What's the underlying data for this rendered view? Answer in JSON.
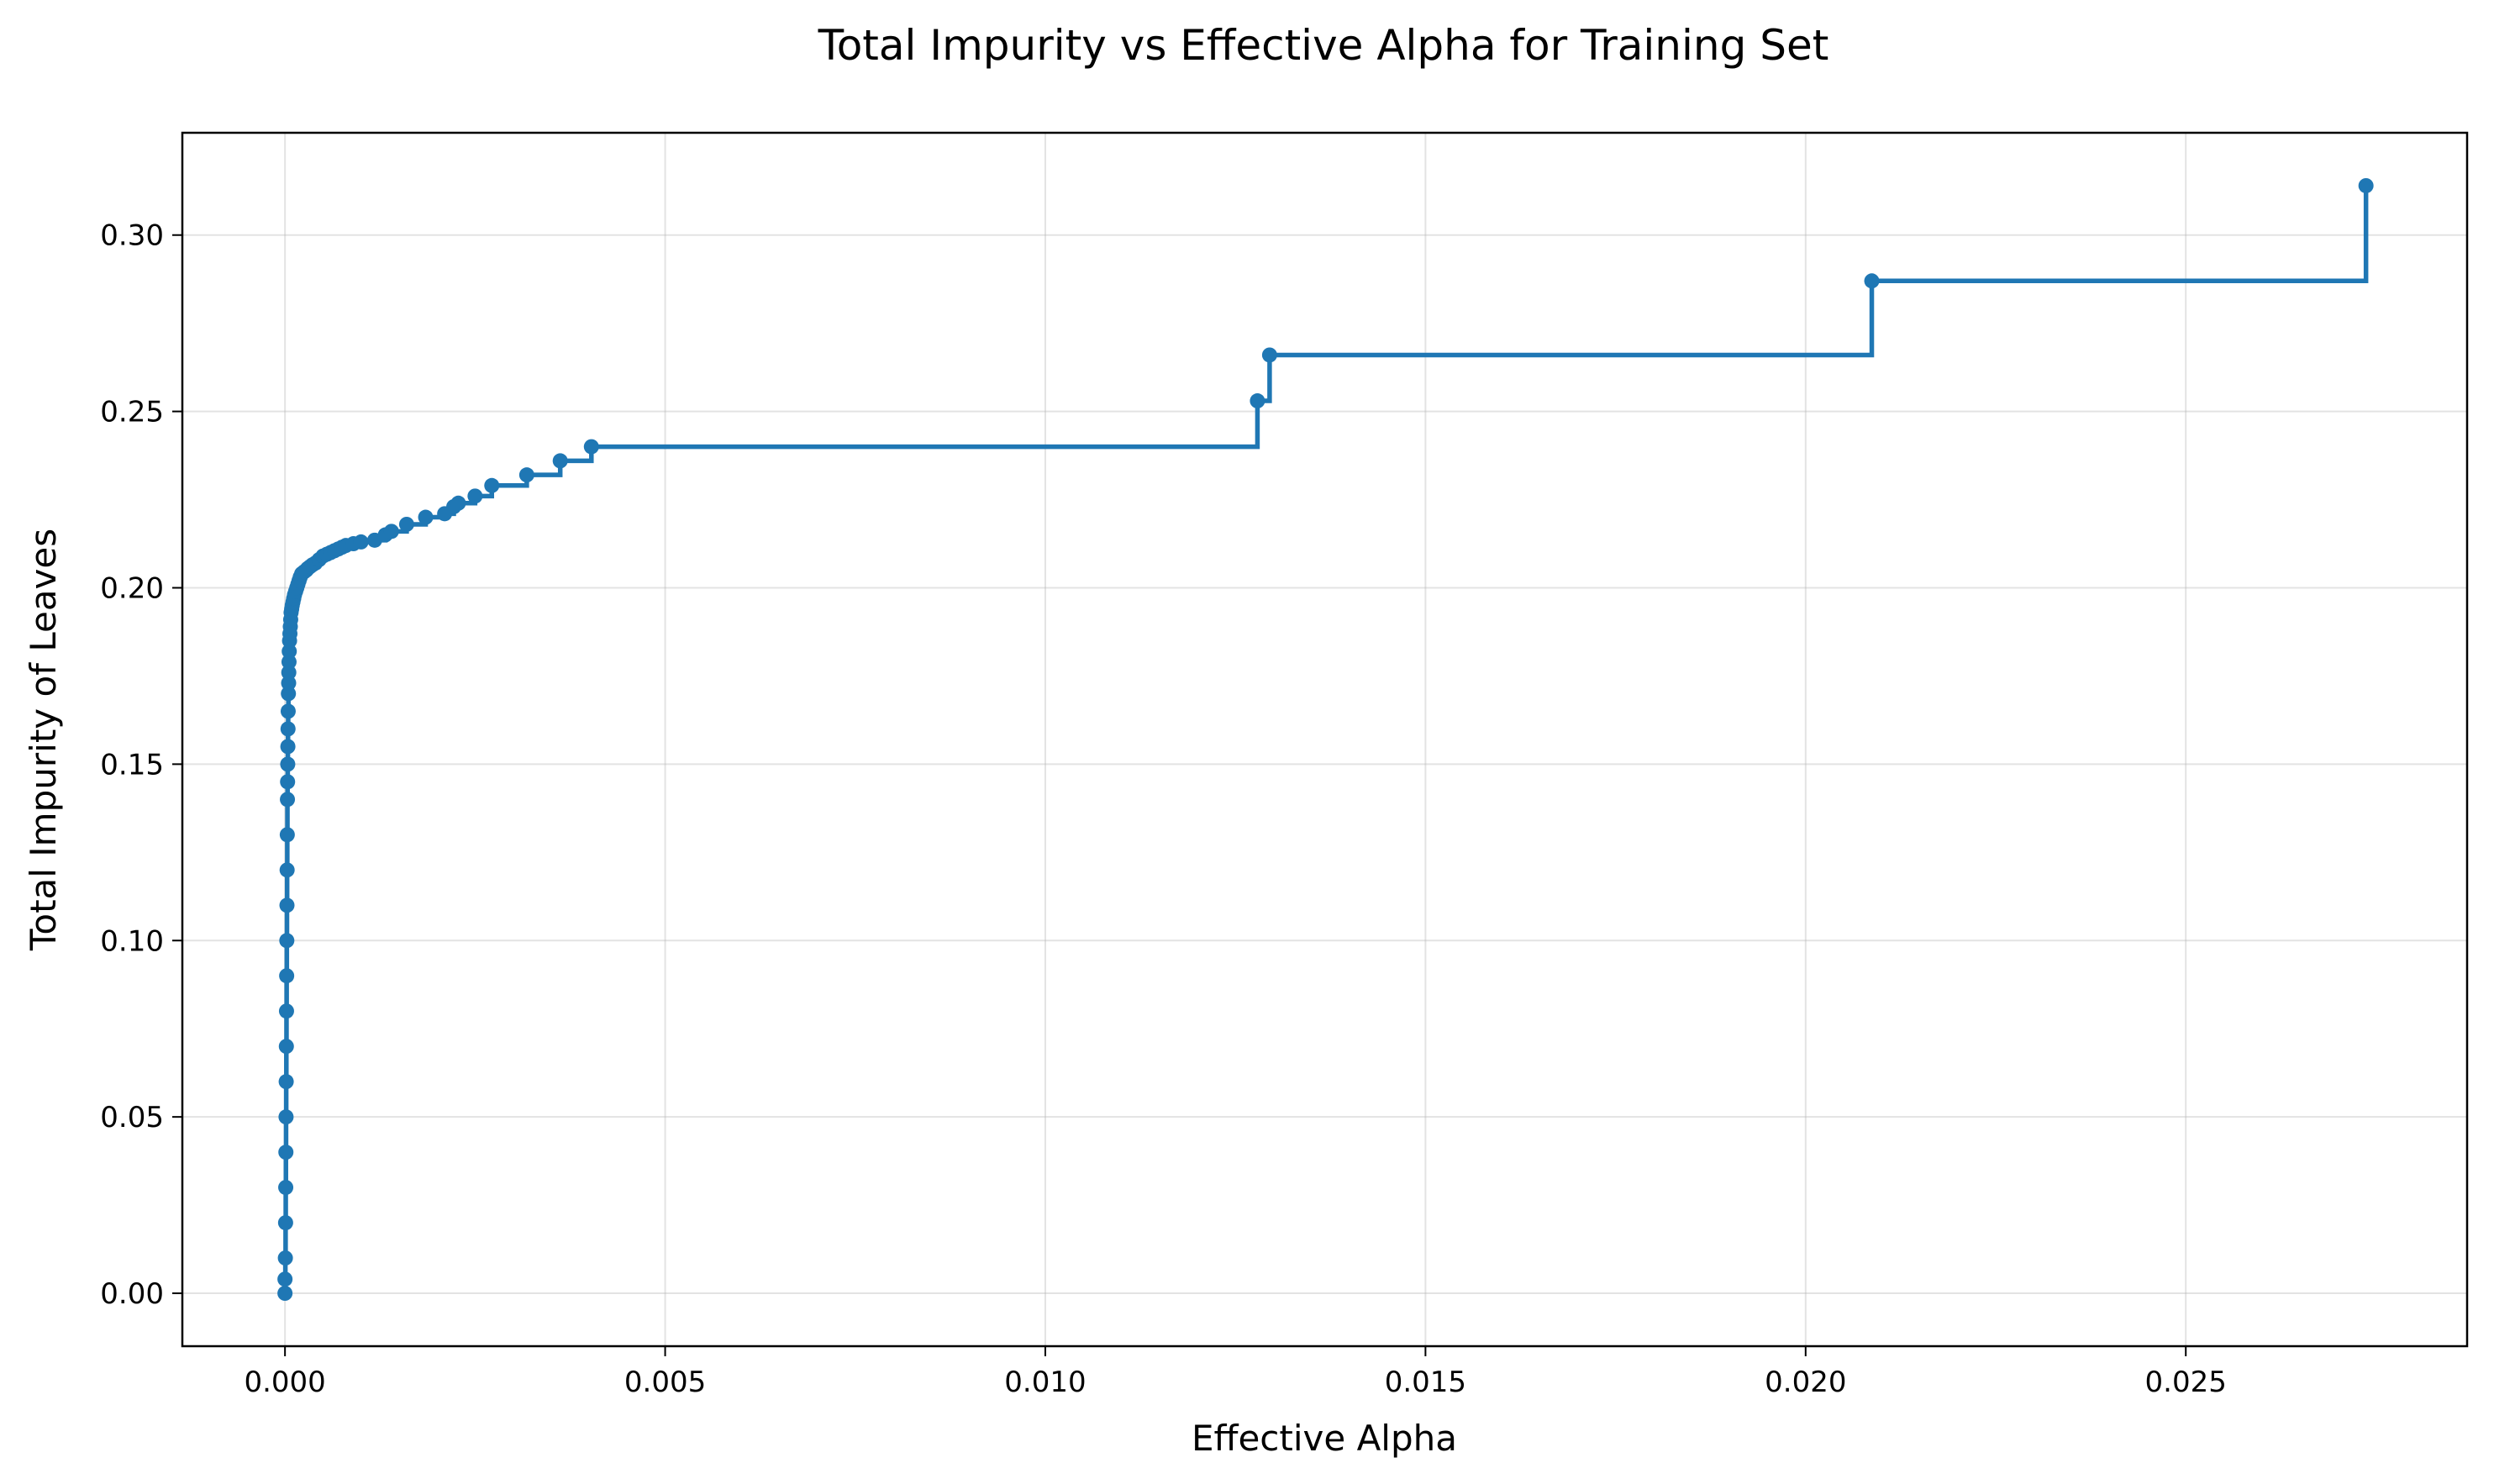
{
  "chart_data": {
    "type": "line",
    "drawstyle": "steps-post",
    "marker": "circle",
    "title": "Total Impurity vs Effective Alpha for Training Set",
    "xlabel": "Effective Alpha",
    "ylabel": "Total Impurity of Leaves",
    "xlim": [
      -0.00135,
      0.0287
    ],
    "ylim": [
      -0.015,
      0.329
    ],
    "xticks": [
      {
        "value": 0.0,
        "label": "0.000"
      },
      {
        "value": 0.005,
        "label": "0.005"
      },
      {
        "value": 0.01,
        "label": "0.010"
      },
      {
        "value": 0.015,
        "label": "0.015"
      },
      {
        "value": 0.02,
        "label": "0.020"
      },
      {
        "value": 0.025,
        "label": "0.025"
      }
    ],
    "yticks": [
      {
        "value": 0.0,
        "label": "0.00"
      },
      {
        "value": 0.05,
        "label": "0.05"
      },
      {
        "value": 0.1,
        "label": "0.10"
      },
      {
        "value": 0.15,
        "label": "0.15"
      },
      {
        "value": 0.2,
        "label": "0.20"
      },
      {
        "value": 0.25,
        "label": "0.25"
      },
      {
        "value": 0.3,
        "label": "0.30"
      }
    ],
    "grid": true,
    "color": "#1f77b4",
    "series": [
      {
        "x": [
          0.0,
          0.0,
          5e-06,
          8e-06,
          1e-05,
          1.2e-05,
          1.4e-05,
          1.6e-05,
          1.8e-05,
          2e-05,
          2.2e-05,
          2.4e-05,
          2.6e-05,
          2.8e-05,
          3e-05,
          3.2e-05,
          3.4e-05,
          3.6e-05,
          3.8e-05,
          4e-05,
          4.2e-05,
          4.5e-05,
          4.8e-05,
          5e-05,
          5.3e-05,
          5.6e-05,
          6e-05,
          6.5e-05,
          7e-05,
          7.5e-05,
          8e-05,
          8.8e-05,
          9.5e-05,
          0.000105,
          0.000115,
          0.000125,
          0.00014,
          0.000155,
          0.00017,
          0.000185,
          0.0002,
          0.00022,
          0.00025,
          0.00028,
          0.0003,
          0.00033,
          0.00036,
          0.0004,
          0.00045,
          0.0005,
          0.00055,
          0.0006,
          0.00065,
          0.0007,
          0.00075,
          0.0008,
          0.0009,
          0.001,
          0.00118,
          0.00132,
          0.0014,
          0.0016,
          0.00185,
          0.0021,
          0.00222,
          0.00228,
          0.0025,
          0.00272,
          0.00318,
          0.00362,
          0.00403,
          0.01279,
          0.01295,
          0.02087,
          0.02737
        ],
        "y": [
          0.0,
          0.004,
          0.01,
          0.02,
          0.03,
          0.04,
          0.05,
          0.06,
          0.07,
          0.08,
          0.09,
          0.1,
          0.11,
          0.12,
          0.13,
          0.14,
          0.145,
          0.15,
          0.155,
          0.16,
          0.165,
          0.17,
          0.173,
          0.176,
          0.179,
          0.182,
          0.185,
          0.187,
          0.189,
          0.191,
          0.193,
          0.194,
          0.195,
          0.196,
          0.197,
          0.198,
          0.199,
          0.2,
          0.201,
          0.202,
          0.203,
          0.204,
          0.2045,
          0.205,
          0.2055,
          0.206,
          0.2065,
          0.207,
          0.208,
          0.209,
          0.2095,
          0.21,
          0.2105,
          0.211,
          0.2115,
          0.212,
          0.2125,
          0.213,
          0.2135,
          0.215,
          0.216,
          0.218,
          0.22,
          0.221,
          0.223,
          0.224,
          0.226,
          0.229,
          0.232,
          0.236,
          0.24,
          0.253,
          0.266,
          0.287,
          0.314
        ]
      }
    ]
  }
}
